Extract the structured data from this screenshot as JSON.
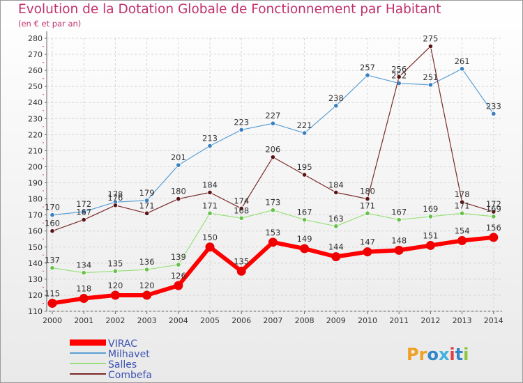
{
  "chart_data": {
    "type": "line",
    "title": "Evolution de la Dotation Globale de Fonctionnement par Habitant",
    "subtitle": "(en € et par an)",
    "xlabel": "",
    "ylabel": "",
    "categories": [
      "2000",
      "2001",
      "2002",
      "2003",
      "2004",
      "2005",
      "2006",
      "2007",
      "2008",
      "2009",
      "2010",
      "2011",
      "2012",
      "2013",
      "2014"
    ],
    "ylim": [
      110,
      280
    ],
    "ytick_step": 10,
    "grid": true,
    "legend_position": "bottom-left",
    "series": [
      {
        "name": "Milhavet",
        "color": "#5a9fd4",
        "marker": "#3a7fc0",
        "values": [
          170,
          172,
          178,
          179,
          201,
          213,
          223,
          227,
          221,
          238,
          257,
          252,
          251,
          261,
          233
        ],
        "labels": [
          "170",
          "172",
          "178",
          "179",
          "201",
          "213",
          "223",
          "227",
          "221",
          "238",
          "257",
          "252",
          "251",
          "261",
          "233"
        ]
      },
      {
        "name": "Combefa",
        "color": "#7a2a2a",
        "marker": "#5a1414",
        "values": [
          160,
          167,
          176,
          171,
          180,
          184,
          174,
          206,
          195,
          184,
          180,
          256,
          275,
          178,
          172
        ],
        "labels": [
          "160",
          "167",
          "176",
          "171",
          "180",
          "184",
          "174",
          "206",
          "195",
          "184",
          "180",
          "256",
          "275",
          "178",
          "172"
        ]
      },
      {
        "name": "Salles",
        "color": "#99e07a",
        "marker": "#66c04a",
        "values": [
          137,
          134,
          135,
          136,
          139,
          171,
          168,
          173,
          167,
          163,
          171,
          167,
          169,
          171,
          169
        ],
        "labels": [
          "137",
          "134",
          "135",
          "136",
          "139",
          "171",
          "168",
          "173",
          "167",
          "163",
          "171",
          "167",
          "169",
          "171",
          "169"
        ]
      },
      {
        "name": "VIRAC",
        "color": "#ff0000",
        "marker": "#ee0000",
        "values": [
          115,
          118,
          120,
          120,
          126,
          150,
          135,
          153,
          149,
          144,
          147,
          148,
          151,
          154,
          156
        ],
        "labels": [
          "115",
          "118",
          "120",
          "120",
          "126",
          "150",
          "135",
          "153",
          "149",
          "144",
          "147",
          "148",
          "151",
          "154",
          "156"
        ]
      }
    ],
    "legend": [
      "VIRAC",
      "Milhavet",
      "Salles",
      "Combefa"
    ]
  },
  "logo": {
    "text": "Proxiti",
    "letters": [
      "P",
      "r",
      "o",
      "x",
      "i",
      "t",
      "i"
    ]
  }
}
